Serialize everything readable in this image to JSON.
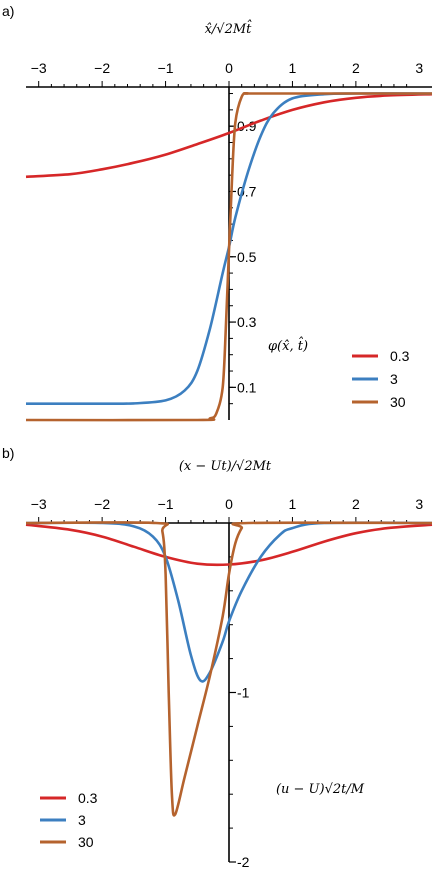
{
  "chart_data": [
    {
      "panel_label": "a)",
      "type": "line",
      "xlabel": "x̂/√2Mt̂",
      "ylabel": "φ(x̂, t̂)",
      "xlim": [
        -3.2,
        3.2
      ],
      "ylim": [
        0,
        1.02
      ],
      "x_ticks": [
        "−3",
        "−2",
        "−1",
        "0",
        "1",
        "2",
        "3"
      ],
      "y_ticks": [
        "0.1",
        "0.3",
        "0.5",
        "0.7",
        "0.9"
      ],
      "legend_position": "bottom-right",
      "series": [
        {
          "name": "0.3",
          "color": "#d62728",
          "x": [
            -3.2,
            -2.5,
            -2.0,
            -1.5,
            -1.0,
            -0.5,
            0.0,
            0.5,
            1.0,
            1.5,
            2.0,
            2.5,
            3.2
          ],
          "y": [
            0.745,
            0.753,
            0.768,
            0.788,
            0.813,
            0.845,
            0.879,
            0.917,
            0.95,
            0.973,
            0.987,
            0.994,
            0.998
          ]
        },
        {
          "name": "3",
          "color": "#3c7fc0",
          "x": [
            -3.2,
            -2.0,
            -1.5,
            -1.0,
            -0.7,
            -0.5,
            -0.3,
            -0.1,
            0.0,
            0.1,
            0.3,
            0.5,
            0.7,
            1.0,
            1.5,
            2.0,
            3.2
          ],
          "y": [
            0.05,
            0.05,
            0.051,
            0.06,
            0.09,
            0.15,
            0.28,
            0.45,
            0.53,
            0.62,
            0.76,
            0.87,
            0.94,
            0.985,
            0.998,
            1.0,
            1.0
          ],
          "note": ""
        },
        {
          "name": "30",
          "color": "#b5632e",
          "x": [
            -3.2,
            -0.5,
            -0.3,
            -0.2,
            -0.1,
            -0.05,
            0.0,
            0.05,
            0.1,
            0.2,
            0.3,
            0.5,
            3.2
          ],
          "y": [
            0.0,
            0.0,
            0.005,
            0.02,
            0.1,
            0.28,
            0.52,
            0.75,
            0.91,
            0.99,
            1.0,
            1.0,
            1.0
          ]
        }
      ]
    },
    {
      "panel_label": "b)",
      "type": "line",
      "xlabel": "(x − Ut)/√2Mt",
      "ylabel": "(u − U)√2t/M",
      "xlim": [
        -3.2,
        3.2
      ],
      "ylim": [
        -2.0,
        0.0
      ],
      "x_ticks": [
        "−3",
        "−2",
        "−1",
        "0",
        "1",
        "2",
        "3"
      ],
      "y_ticks": [
        "-1",
        "-2"
      ],
      "legend_position": "bottom-left",
      "series": [
        {
          "name": "0.3",
          "color": "#d62728",
          "x": [
            -3.2,
            -2.5,
            -2.0,
            -1.5,
            -1.0,
            -0.5,
            0.0,
            0.5,
            1.0,
            1.5,
            2.0,
            2.5,
            3.2
          ],
          "y": [
            -0.01,
            -0.04,
            -0.08,
            -0.14,
            -0.2,
            -0.24,
            -0.245,
            -0.22,
            -0.17,
            -0.11,
            -0.06,
            -0.03,
            -0.01
          ]
        },
        {
          "name": "3",
          "color": "#3c7fc0",
          "x": [
            -3.2,
            -2.0,
            -1.5,
            -1.2,
            -1.0,
            -0.8,
            -0.6,
            -0.45,
            -0.3,
            -0.1,
            0.0,
            0.2,
            0.5,
            0.8,
            1.0,
            1.5,
            3.2
          ],
          "y": [
            0.0,
            0.0,
            -0.02,
            -0.08,
            -0.2,
            -0.46,
            -0.78,
            -0.93,
            -0.88,
            -0.7,
            -0.58,
            -0.4,
            -0.2,
            -0.07,
            -0.03,
            0.0,
            0.0
          ]
        },
        {
          "name": "30",
          "color": "#b5632e",
          "x": [
            -3.2,
            -1.15,
            -1.05,
            -1.0,
            -0.95,
            -0.9,
            -0.85,
            -0.7,
            -0.5,
            -0.3,
            -0.1,
            0.0,
            0.1,
            0.2,
            0.3,
            3.2
          ],
          "y": [
            0.0,
            0.0,
            -0.05,
            -0.3,
            -1.0,
            -1.6,
            -1.72,
            -1.5,
            -1.2,
            -0.9,
            -0.55,
            -0.3,
            -0.12,
            -0.03,
            0.0,
            0.0
          ]
        }
      ]
    }
  ]
}
